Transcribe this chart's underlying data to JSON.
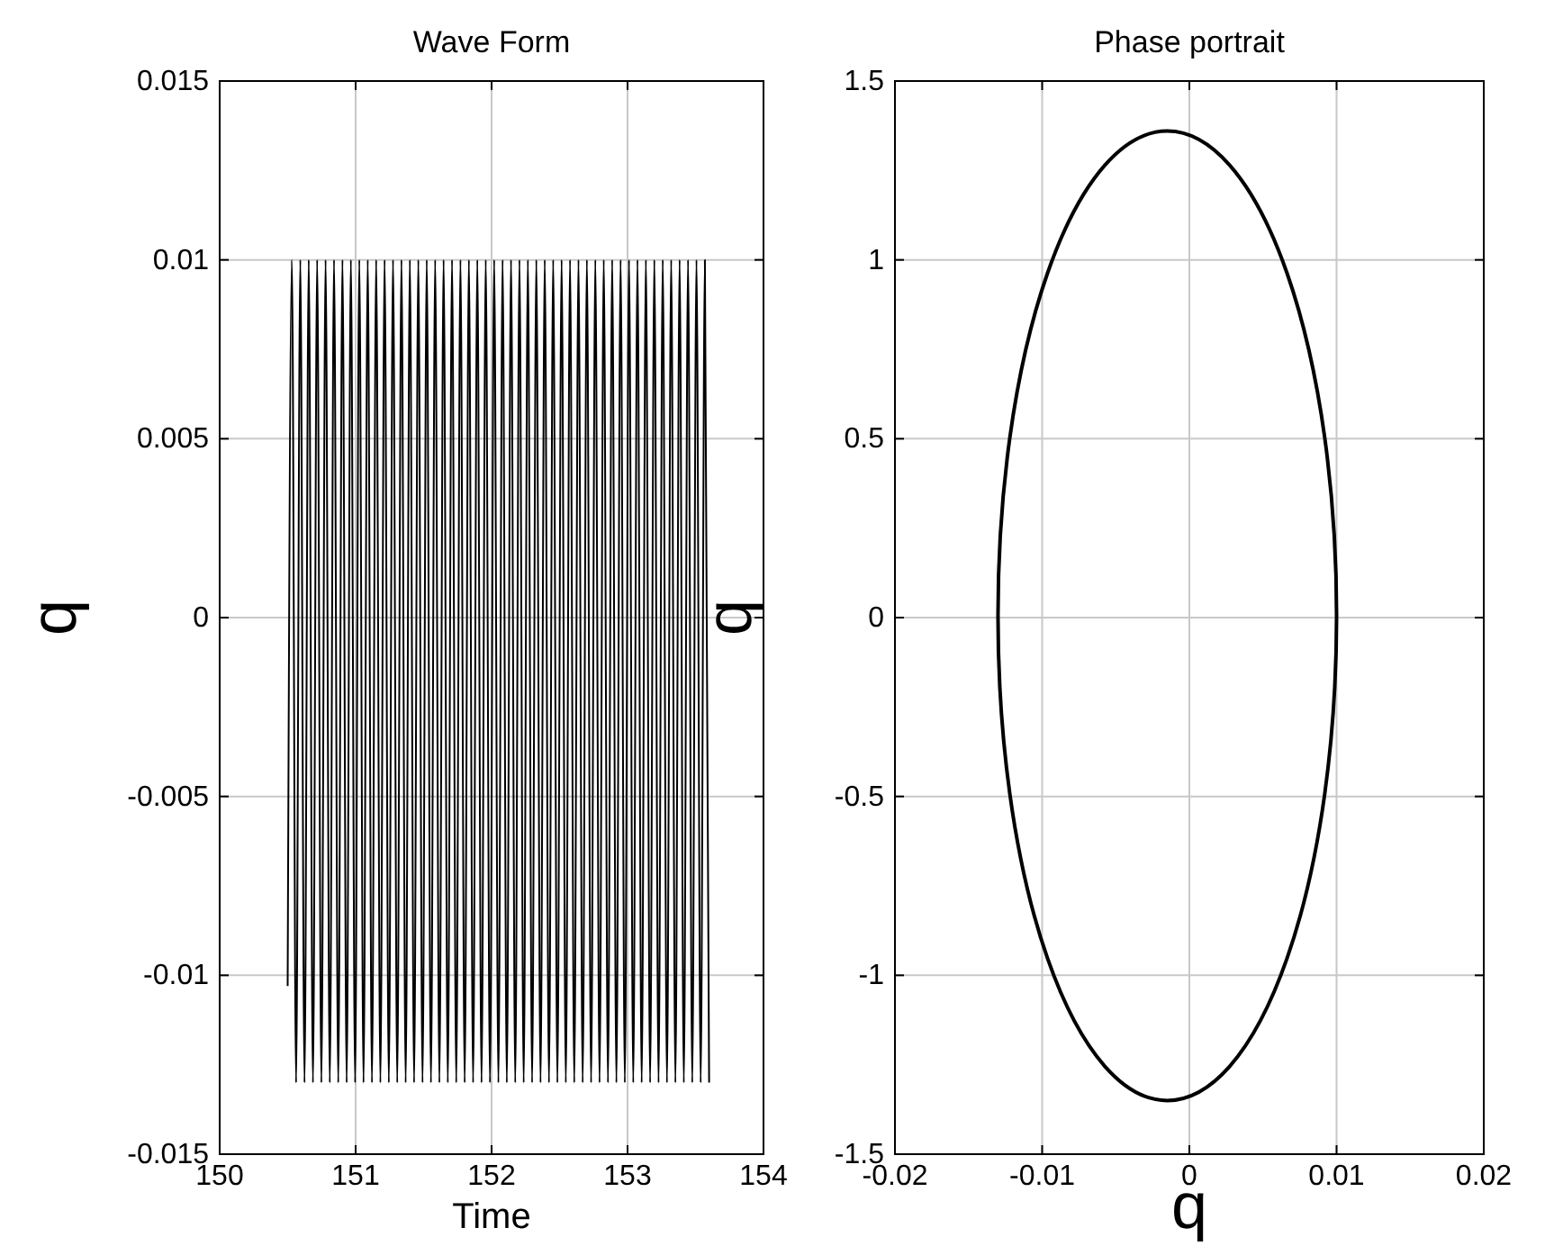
{
  "chart_data": [
    {
      "type": "line",
      "title": "Wave Form",
      "xlabel": "Time",
      "ylabel": "q",
      "xlim": [
        150,
        154
      ],
      "xticks": [
        150,
        151,
        152,
        153,
        154
      ],
      "ylim": [
        -0.015,
        0.015
      ],
      "yticks": [
        -0.015,
        -0.01,
        -0.005,
        0,
        0.005,
        0.01,
        0.015
      ],
      "grid": true,
      "x": [
        150.5,
        150.531,
        150.562,
        150.593,
        150.624,
        150.655,
        150.686,
        150.717,
        150.748,
        150.779,
        150.81,
        150.841,
        150.872,
        150.903,
        150.934,
        150.965,
        150.996,
        151.027,
        151.058,
        151.089,
        151.12,
        151.151,
        151.182,
        151.213,
        151.244,
        151.275,
        151.306,
        151.337,
        151.368,
        151.399,
        151.43,
        151.461,
        151.492,
        151.523,
        151.554,
        151.585,
        151.616,
        151.647,
        151.678,
        151.709,
        151.74,
        151.771,
        151.802,
        151.833,
        151.864,
        151.895,
        151.926,
        151.957,
        151.988,
        152.019,
        152.05,
        152.081,
        152.112,
        152.143,
        152.174,
        152.205,
        152.236,
        152.267,
        152.298,
        152.329,
        152.36,
        152.391,
        152.422,
        152.453,
        152.484,
        152.515,
        152.546,
        152.577,
        152.608,
        152.639,
        152.67,
        152.701,
        152.732,
        152.763,
        152.794,
        152.825,
        152.856,
        152.887,
        152.918,
        152.949,
        152.98,
        153.011,
        153.042,
        153.073,
        153.104,
        153.135,
        153.166,
        153.197,
        153.228,
        153.259,
        153.29,
        153.321,
        153.352,
        153.383,
        153.414,
        153.445,
        153.476,
        153.507,
        153.538,
        153.569,
        153.6
      ],
      "series": [
        {
          "color": "#000000",
          "values": [
            -0.0103,
            0.01,
            -0.013,
            0.01,
            -0.013,
            0.01,
            -0.013,
            0.01,
            -0.013,
            0.01,
            -0.013,
            0.01,
            -0.013,
            0.01,
            -0.013,
            0.01,
            -0.013,
            0.01,
            -0.013,
            0.01,
            -0.013,
            0.01,
            -0.013,
            0.01,
            -0.013,
            0.01,
            -0.013,
            0.01,
            -0.013,
            0.01,
            -0.013,
            0.01,
            -0.013,
            0.01,
            -0.013,
            0.01,
            -0.013,
            0.01,
            -0.013,
            0.01,
            -0.013,
            0.01,
            -0.013,
            0.01,
            -0.013,
            0.01,
            -0.013,
            0.01,
            -0.013,
            0.01,
            -0.013,
            0.01,
            -0.013,
            0.01,
            -0.013,
            0.01,
            -0.013,
            0.01,
            -0.013,
            0.01,
            -0.013,
            0.01,
            -0.013,
            0.01,
            -0.013,
            0.01,
            -0.013,
            0.01,
            -0.013,
            0.01,
            -0.013,
            0.01,
            -0.013,
            0.01,
            -0.013,
            0.01,
            -0.013,
            0.01,
            -0.013,
            0.01,
            -0.013,
            0.01,
            -0.013,
            0.01,
            -0.013,
            0.01,
            -0.013,
            0.01,
            -0.013,
            0.01,
            -0.013,
            0.01,
            -0.013,
            0.01,
            -0.013,
            0.01,
            -0.013,
            0.01,
            -0.013,
            0.01,
            -0.013
          ]
        }
      ]
    },
    {
      "type": "line",
      "title": "Phase portrait",
      "xlabel": "q",
      "ylabel": "q",
      "xlim": [
        -0.02,
        0.02
      ],
      "xticks": [
        -0.02,
        -0.01,
        0,
        0.01,
        0.02
      ],
      "ylim": [
        -1.5,
        1.5
      ],
      "yticks": [
        -1.5,
        -1,
        -0.5,
        0,
        0.5,
        1,
        1.5
      ],
      "grid": true
    }
  ]
}
